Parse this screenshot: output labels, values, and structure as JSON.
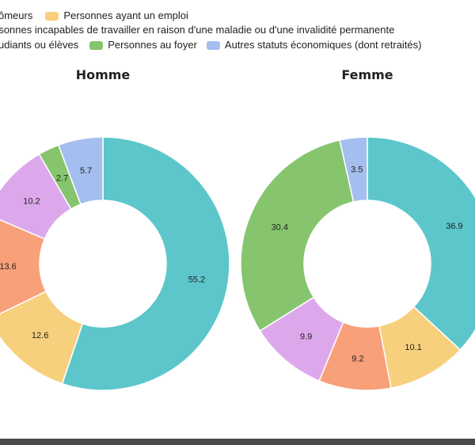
{
  "chart_data": {
    "type": "pie",
    "legend": {
      "placement": "top",
      "entries": [
        {
          "key": "chomeurs",
          "label": "ômeurs",
          "color": "#F05A28"
        },
        {
          "key": "emploi",
          "label": "Personnes ayant un emploi",
          "color": "#F7D07E"
        },
        {
          "key": "incapables",
          "label": "rsonnes incapables de travailler en raison d'une maladie ou d'une invalidité permanente",
          "color": "#F8A07A"
        },
        {
          "key": "etudiants",
          "label": "udiants ou élèves",
          "color": "#DDA8EB"
        },
        {
          "key": "foyer",
          "label": "Personnes au foyer",
          "color": "#86C56E"
        },
        {
          "key": "autres",
          "label": "Autres statuts économiques (dont retraités)",
          "color": "#A4BEEF"
        }
      ]
    },
    "charts": [
      {
        "title": "Homme",
        "slices": [
          {
            "key": "teal",
            "value": 55.2,
            "label": "55.2",
            "color": "#5CC6CB"
          },
          {
            "key": "emploi",
            "value": 12.6,
            "label": "12.6",
            "color": "#F7D07E"
          },
          {
            "key": "incapables",
            "value": 13.6,
            "label": "13.6",
            "color": "#F8A07A"
          },
          {
            "key": "etudiants",
            "value": 10.2,
            "label": "10.2",
            "color": "#DDA8EB"
          },
          {
            "key": "foyer",
            "value": 2.7,
            "label": "2.7",
            "color": "#86C56E"
          },
          {
            "key": "autres",
            "value": 5.7,
            "label": "5.7",
            "color": "#A4BEEF"
          }
        ]
      },
      {
        "title": "Femme",
        "slices": [
          {
            "key": "teal",
            "value": 36.9,
            "label": "36.9",
            "color": "#5CC6CB"
          },
          {
            "key": "emploi",
            "value": 10.1,
            "label": "10.1",
            "color": "#F7D07E"
          },
          {
            "key": "incapables",
            "value": 9.2,
            "label": "9.2",
            "color": "#F8A07A"
          },
          {
            "key": "etudiants",
            "value": 9.9,
            "label": "9.9",
            "color": "#DDA8EB"
          },
          {
            "key": "foyer",
            "value": 30.4,
            "label": "30.4",
            "color": "#86C56E"
          },
          {
            "key": "autres",
            "value": 3.5,
            "label": "3.5",
            "color": "#A4BEEF"
          }
        ]
      }
    ]
  }
}
